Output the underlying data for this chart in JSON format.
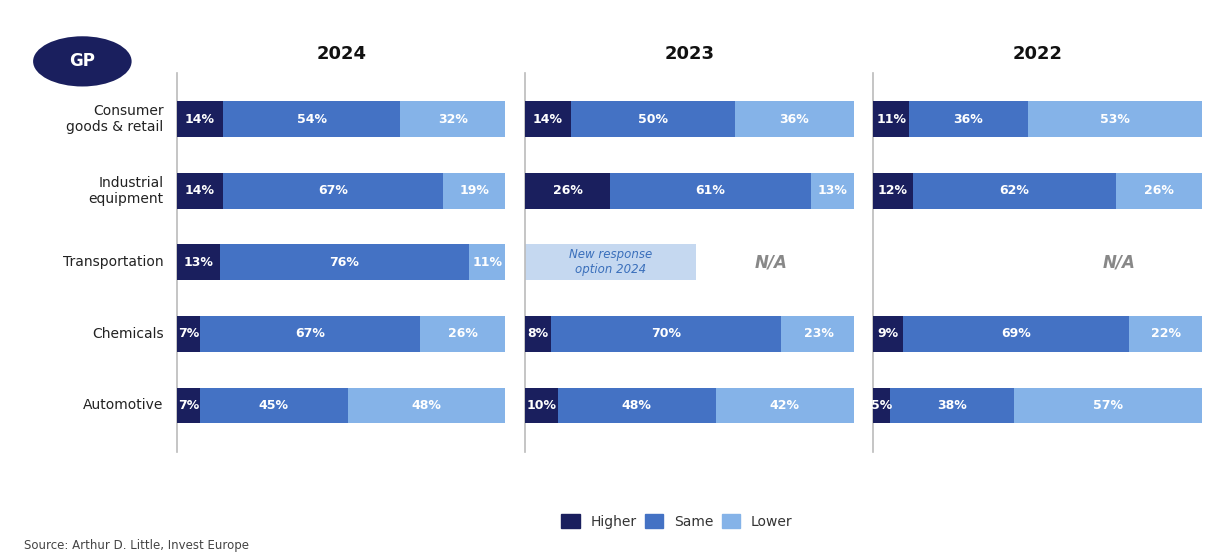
{
  "categories": [
    "Consumer\ngoods & retail",
    "Industrial\nequipment",
    "Transportation",
    "Chemicals",
    "Automotive"
  ],
  "years": [
    "2024",
    "2023",
    "2022"
  ],
  "data": {
    "2024": {
      "higher": [
        14,
        14,
        13,
        7,
        7
      ],
      "same": [
        54,
        67,
        76,
        67,
        45
      ],
      "lower": [
        32,
        19,
        11,
        26,
        48
      ]
    },
    "2023": {
      "higher": [
        14,
        26,
        null,
        8,
        10
      ],
      "same": [
        50,
        61,
        null,
        70,
        48
      ],
      "lower": [
        36,
        13,
        null,
        23,
        42
      ]
    },
    "2022": {
      "higher": [
        11,
        12,
        null,
        9,
        5
      ],
      "same": [
        36,
        62,
        null,
        69,
        38
      ],
      "lower": [
        53,
        26,
        null,
        22,
        57
      ]
    }
  },
  "colors": {
    "higher": "#1a1f5e",
    "same": "#4472c4",
    "lower": "#85b3e8"
  },
  "na_text_2023": "New response\noption 2024",
  "na_label": "N/A",
  "background_color": "#ffffff",
  "title_fontsize": 13,
  "bar_label_fontsize": 9,
  "category_fontsize": 10,
  "legend_fontsize": 10,
  "source_text": "Source: Arthur D. Little, Invest Europe",
  "gp_badge_color": "#1a1f5e",
  "bar_height": 0.5
}
